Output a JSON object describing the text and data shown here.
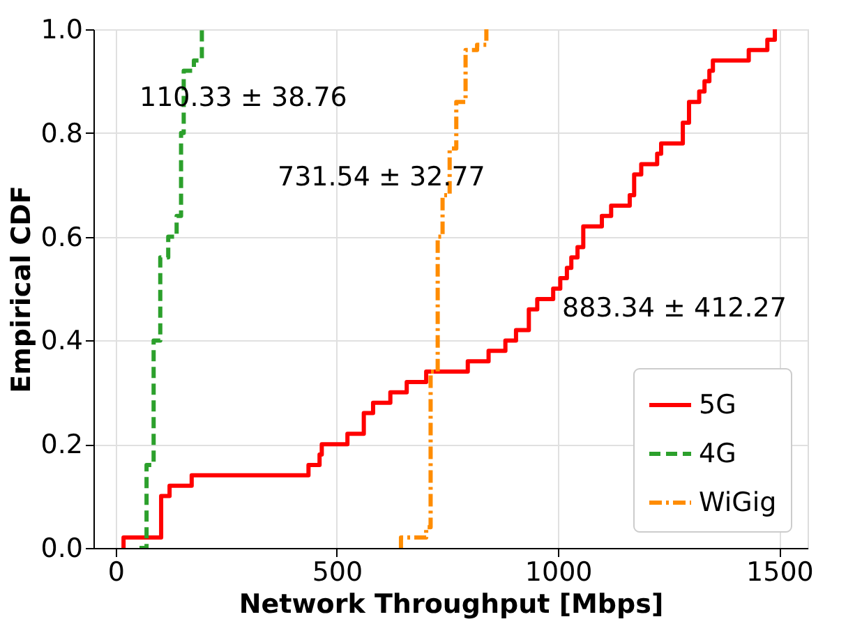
{
  "chart_data": {
    "type": "step",
    "xlabel": "Network Throughput [Mbps]",
    "ylabel": "Empirical CDF",
    "xlim": [
      -50,
      1564
    ],
    "ylim": [
      0,
      1
    ],
    "xticks": [
      0,
      500,
      {
        "value": 1000,
        "label": "1000"
      },
      {
        "value": 1500,
        "label": "1500"
      }
    ],
    "yticks": [
      {
        "value": 0,
        "label": "0.0"
      },
      0.2,
      0.4,
      0.6,
      0.8,
      {
        "value": 1,
        "label": "1.0"
      }
    ],
    "grid": true,
    "legend": "bottom right",
    "series": [
      {
        "name": "5G",
        "color": "#ff0000",
        "line_style": "solid",
        "x": [
          18,
          18,
          103,
          122,
          172,
          242,
          436,
          461,
          466,
          524,
          561,
          582,
          621,
          658,
          702,
          796,
          843,
          881,
          905,
          934,
          953,
          989,
          1005,
          1020,
          1030,
          1044,
          1057,
          1099,
          1120,
          1162,
          1172,
          1188,
          1224,
          1233,
          1282,
          1296,
          1319,
          1331,
          1342,
          1350,
          1431,
          1473,
          1490
        ],
        "values": [
          0,
          0.02,
          0.1,
          0.12,
          0.14,
          0.14,
          0.16,
          0.18,
          0.2,
          0.22,
          0.26,
          0.28,
          0.3,
          0.32,
          0.34,
          0.36,
          0.38,
          0.4,
          0.42,
          0.46,
          0.48,
          0.5,
          0.52,
          0.54,
          0.56,
          0.58,
          0.62,
          0.64,
          0.66,
          0.68,
          0.72,
          0.74,
          0.76,
          0.78,
          0.82,
          0.86,
          0.88,
          0.9,
          0.92,
          0.94,
          0.96,
          0.98,
          1.0
        ]
      },
      {
        "name": "4G",
        "color": "#2ca02c",
        "line_style": "dashed",
        "x": [
          54,
          70,
          86,
          101,
          107,
          119,
          138,
          148,
          154,
          177,
          195
        ],
        "values": [
          0,
          0.16,
          0.4,
          0.56,
          0.56,
          0.6,
          0.64,
          0.8,
          0.92,
          0.94,
          1.0
        ]
      },
      {
        "name": "WiGig",
        "color": "#ff8c00",
        "line_style": "dashdot",
        "x": [
          645,
          645,
          692,
          702,
          712,
          728,
          739,
          755,
          770,
          791,
          817,
          838
        ],
        "values": [
          0,
          0.02,
          0.02,
          0.04,
          0.34,
          0.6,
          0.68,
          0.77,
          0.86,
          0.96,
          0.97,
          1.0
        ]
      }
    ],
    "annotations": [
      "110.33 ± 38.76",
      "731.54 ± 32.77",
      "883.34 ± 412.27"
    ]
  }
}
